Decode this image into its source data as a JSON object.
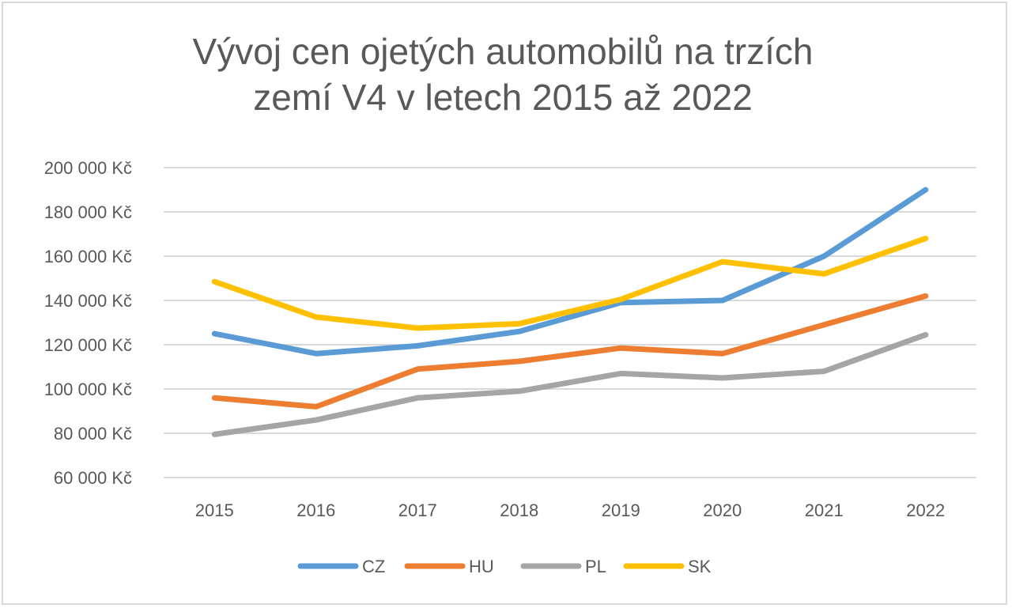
{
  "chart_data": {
    "type": "line",
    "title_lines": [
      "Vývoj cen ojetých automobilů na trzích",
      "zemí V4 v letech 2015 až 2022"
    ],
    "x": [
      "2015",
      "2016",
      "2017",
      "2018",
      "2019",
      "2020",
      "2021",
      "2022"
    ],
    "y_ticks": [
      {
        "value": 60000,
        "label": "60 000 Kč"
      },
      {
        "value": 80000,
        "label": "80 000 Kč"
      },
      {
        "value": 100000,
        "label": "100 000 Kč"
      },
      {
        "value": 120000,
        "label": "120 000 Kč"
      },
      {
        "value": 140000,
        "label": "140 000 Kč"
      },
      {
        "value": 160000,
        "label": "160 000 Kč"
      },
      {
        "value": 180000,
        "label": "180 000 Kč"
      },
      {
        "value": 200000,
        "label": "200 000 Kč"
      }
    ],
    "ylim": [
      60000,
      200000
    ],
    "grid": true,
    "legend_position": "bottom",
    "series": [
      {
        "name": "CZ",
        "color": "#5b9bd5",
        "values": [
          125000,
          116000,
          119500,
          126000,
          139000,
          140000,
          160000,
          190000
        ]
      },
      {
        "name": "HU",
        "color": "#ed7d31",
        "values": [
          96000,
          92000,
          109000,
          112500,
          118500,
          116000,
          129000,
          142000
        ]
      },
      {
        "name": "PL",
        "color": "#a5a5a5",
        "values": [
          79500,
          86000,
          96000,
          99000,
          107000,
          105000,
          108000,
          124500
        ]
      },
      {
        "name": "SK",
        "color": "#ffc000",
        "values": [
          148500,
          132500,
          127500,
          129500,
          140500,
          157500,
          152000,
          168000
        ]
      }
    ]
  }
}
